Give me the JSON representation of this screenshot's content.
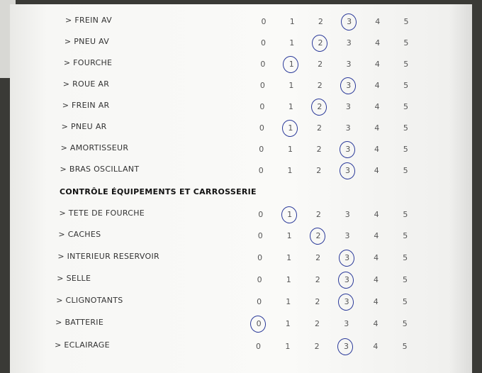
{
  "scale": [
    0,
    1,
    2,
    3,
    4,
    5
  ],
  "ink_color": "#2b3a9a",
  "group1": [
    {
      "label": "> FREIN AV",
      "selected": 3
    },
    {
      "label": "> PNEU AV",
      "selected": 2
    },
    {
      "label": "> FOURCHE",
      "selected": 1
    },
    {
      "label": "> ROUE AR",
      "selected": 3
    },
    {
      "label": "> FREIN AR",
      "selected": 2
    },
    {
      "label": "> PNEU AR",
      "selected": 1
    },
    {
      "label": "> AMORTISSEUR",
      "selected": 3
    },
    {
      "label": "> BRAS OSCILLANT",
      "selected": 3
    }
  ],
  "section_title": "CONTRÔLE ÉQUIPEMENTS ET CARROSSERIE",
  "group2": [
    {
      "label": "> TETE DE FOURCHE",
      "selected": 1
    },
    {
      "label": "> CACHES",
      "selected": 2
    },
    {
      "label": "> INTERIEUR RESERVOIR",
      "selected": 3
    },
    {
      "label": "> SELLE",
      "selected": 3
    },
    {
      "label": "> CLIGNOTANTS",
      "selected": 3
    },
    {
      "label": "> BATTERIE",
      "selected": 0
    },
    {
      "label": "> ECLAIRAGE",
      "selected": 3
    }
  ]
}
